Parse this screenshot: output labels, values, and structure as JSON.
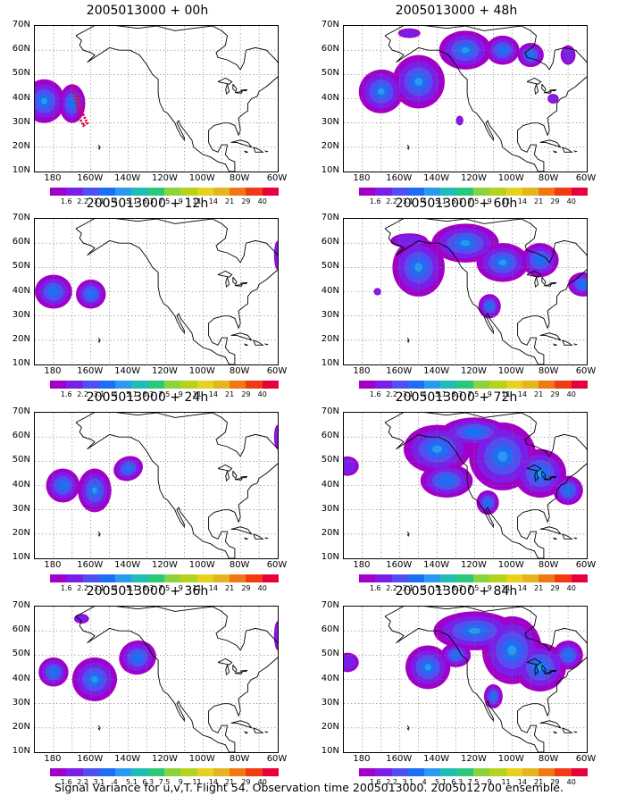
{
  "caption": "Signal Variance for u,v,T. Flight 54. Observation time 2005013000. 2005012700 ensemble.",
  "lat_labels": [
    "70N",
    "60N",
    "50N",
    "40N",
    "30N",
    "20N",
    "10N"
  ],
  "lon_labels": [
    "180",
    "160W",
    "140W",
    "120W",
    "100W",
    "80W",
    "60W"
  ],
  "colorbar": {
    "colors": [
      "#a000c8",
      "#7a1ee8",
      "#5050f0",
      "#1e6ef5",
      "#2a9af0",
      "#1ebeb4",
      "#2cc87a",
      "#8cd23c",
      "#b4d21e",
      "#e6d21e",
      "#e6b41e",
      "#f07814",
      "#f03c14",
      "#e6003c"
    ],
    "labels": [
      "1.6",
      "2.2",
      "3.1",
      "4",
      "5.1",
      "6.3",
      "7.5",
      "9",
      "11",
      "14",
      "21",
      "29",
      "40"
    ]
  },
  "panels": [
    {
      "title": "2005013000 + 00h",
      "blobs": [
        [
          -185,
          39,
          11,
          9,
          0
        ],
        [
          -170,
          38,
          7,
          8,
          0
        ]
      ],
      "track": true
    },
    {
      "title": "2005013000 + 12h",
      "blobs": [
        [
          -180,
          40,
          10,
          7,
          0
        ],
        [
          -160,
          39,
          8,
          6,
          0
        ],
        [
          -60,
          55,
          2,
          6,
          0
        ]
      ]
    },
    {
      "title": "2005013000 + 24h",
      "blobs": [
        [
          -175,
          40,
          9,
          7,
          0
        ],
        [
          -158,
          38,
          9,
          9,
          0
        ],
        [
          -140,
          47,
          8,
          5,
          -20
        ],
        [
          -60,
          60,
          2,
          5,
          0
        ]
      ]
    },
    {
      "title": "2005013000 + 36h",
      "blobs": [
        [
          -180,
          43,
          8,
          6,
          0
        ],
        [
          -158,
          40,
          12,
          9,
          -10
        ],
        [
          -135,
          49,
          10,
          7,
          -15
        ],
        [
          -165,
          65,
          4,
          2,
          0
        ],
        [
          -60,
          58,
          2,
          6,
          0
        ]
      ]
    },
    {
      "title": "2005013000 + 48h",
      "blobs": [
        [
          -170,
          43,
          12,
          9,
          -15
        ],
        [
          -150,
          47,
          14,
          11,
          0
        ],
        [
          -125,
          60,
          14,
          8,
          0
        ],
        [
          -105,
          60,
          9,
          6,
          0
        ],
        [
          -90,
          58,
          7,
          5,
          0
        ],
        [
          -70,
          58,
          4,
          4,
          0
        ],
        [
          -78,
          40,
          3,
          2,
          0
        ],
        [
          -128,
          31,
          2,
          2,
          0
        ],
        [
          -155,
          67,
          6,
          2,
          0
        ]
      ]
    },
    {
      "title": "2005013000 + 60h",
      "blobs": [
        [
          -150,
          50,
          14,
          12,
          0
        ],
        [
          -125,
          60,
          18,
          8,
          0
        ],
        [
          -105,
          52,
          14,
          8,
          0
        ],
        [
          -85,
          53,
          10,
          7,
          0
        ],
        [
          -62,
          43,
          8,
          5,
          0
        ],
        [
          -112,
          34,
          6,
          5,
          0
        ],
        [
          -172,
          40,
          2,
          1.5,
          0
        ],
        [
          -155,
          61,
          10,
          3,
          0
        ]
      ]
    },
    {
      "title": "2005013000 + 72h",
      "blobs": [
        [
          -140,
          55,
          18,
          10,
          0
        ],
        [
          -120,
          62,
          18,
          6,
          0
        ],
        [
          -105,
          52,
          18,
          14,
          0
        ],
        [
          -85,
          45,
          14,
          10,
          0
        ],
        [
          -135,
          42,
          14,
          7,
          0
        ],
        [
          -113,
          33,
          6,
          5,
          0
        ],
        [
          -188,
          48,
          6,
          4,
          0
        ],
        [
          -70,
          38,
          8,
          6,
          0
        ]
      ]
    },
    {
      "title": "2005013000 + 84h",
      "blobs": [
        [
          -120,
          60,
          22,
          8,
          0
        ],
        [
          -100,
          52,
          16,
          14,
          0
        ],
        [
          -85,
          45,
          14,
          10,
          0
        ],
        [
          -145,
          45,
          12,
          9,
          0
        ],
        [
          -110,
          33,
          5,
          5,
          0
        ],
        [
          -188,
          47,
          6,
          4,
          0
        ],
        [
          -70,
          50,
          8,
          6,
          0
        ],
        [
          -130,
          50,
          8,
          5,
          0
        ]
      ]
    }
  ]
}
